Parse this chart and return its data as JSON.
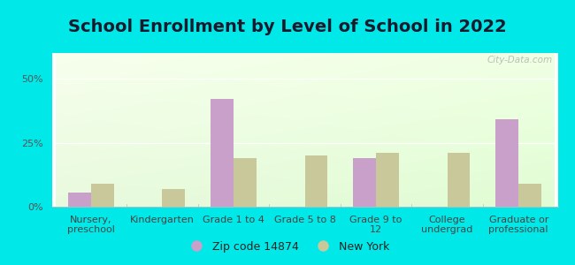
{
  "title": "School Enrollment by Level of School in 2022",
  "categories": [
    "Nursery,\npreschool",
    "Kindergarten",
    "Grade 1 to 4",
    "Grade 5 to 8",
    "Grade 9 to\n12",
    "College\nundergrad",
    "Graduate or\nprofessional"
  ],
  "zip_values": [
    5.5,
    0,
    42,
    0,
    19,
    0,
    34
  ],
  "ny_values": [
    9,
    7,
    19,
    20,
    21,
    21,
    9
  ],
  "zip_color": "#c9a0c9",
  "ny_color": "#c8c89a",
  "background_color": "#00e8e8",
  "ylim": [
    0,
    60
  ],
  "yticks": [
    0,
    25,
    50
  ],
  "ytick_labels": [
    "0%",
    "25%",
    "50%"
  ],
  "legend_zip_label": "Zip code 14874",
  "legend_ny_label": "New York",
  "watermark": "City-Data.com",
  "title_fontsize": 14,
  "tick_fontsize": 8,
  "legend_fontsize": 9,
  "bar_width": 0.32
}
